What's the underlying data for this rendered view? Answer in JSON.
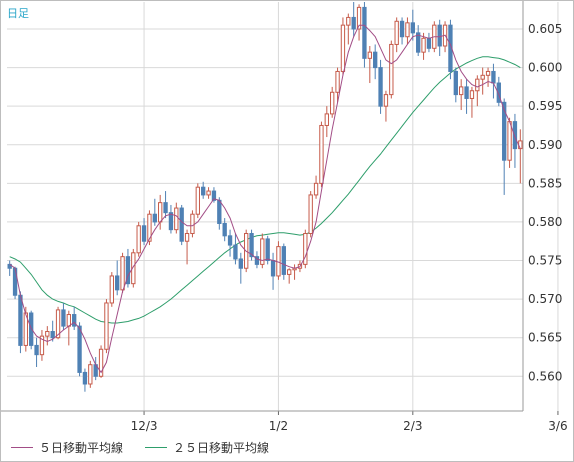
{
  "chart_data": {
    "type": "candlestick",
    "title": "日足",
    "y_ticks": [
      "0.605",
      "0.600",
      "0.595",
      "0.590",
      "0.585",
      "0.580",
      "0.575",
      "0.570",
      "0.565",
      "0.560"
    ],
    "ylim": [
      0.5555,
      0.6085
    ],
    "x_tick_labels": [
      "12/3",
      "1/2",
      "2/3",
      "3/6"
    ],
    "x_tick_index": [
      25,
      50,
      75,
      102
    ],
    "grid": true,
    "colors": {
      "up": "#c65b4a",
      "down": "#4f81b4",
      "ma5": "#a24d86",
      "ma25": "#2e9e6b",
      "grid": "#d9d9d9",
      "title": "#2aa6c9"
    },
    "candles": [
      [
        0.5745,
        0.575,
        0.573,
        0.574
      ],
      [
        0.574,
        0.5742,
        0.57,
        0.5705
      ],
      [
        0.5705,
        0.571,
        0.563,
        0.564
      ],
      [
        0.564,
        0.569,
        0.5632,
        0.5682
      ],
      [
        0.5682,
        0.5685,
        0.5635,
        0.564
      ],
      [
        0.564,
        0.565,
        0.5612,
        0.5628
      ],
      [
        0.5628,
        0.566,
        0.562,
        0.5652
      ],
      [
        0.5652,
        0.5665,
        0.564,
        0.5658
      ],
      [
        0.5658,
        0.5672,
        0.5645,
        0.565
      ],
      [
        0.565,
        0.569,
        0.5648,
        0.5686
      ],
      [
        0.5686,
        0.5695,
        0.566,
        0.5665
      ],
      [
        0.5665,
        0.5685,
        0.564,
        0.568
      ],
      [
        0.568,
        0.569,
        0.566,
        0.5665
      ],
      [
        0.5665,
        0.567,
        0.56,
        0.5605
      ],
      [
        0.5605,
        0.561,
        0.558,
        0.559
      ],
      [
        0.559,
        0.562,
        0.5585,
        0.5615
      ],
      [
        0.5615,
        0.5625,
        0.5595,
        0.56
      ],
      [
        0.56,
        0.564,
        0.5598,
        0.5635
      ],
      [
        0.5635,
        0.57,
        0.563,
        0.5695
      ],
      [
        0.5695,
        0.5735,
        0.569,
        0.573
      ],
      [
        0.573,
        0.575,
        0.5705,
        0.5712
      ],
      [
        0.5712,
        0.576,
        0.5708,
        0.5755
      ],
      [
        0.5755,
        0.5765,
        0.5715,
        0.572
      ],
      [
        0.572,
        0.5765,
        0.5715,
        0.576
      ],
      [
        0.576,
        0.58,
        0.5755,
        0.5795
      ],
      [
        0.5795,
        0.5805,
        0.577,
        0.5775
      ],
      [
        0.5775,
        0.5815,
        0.577,
        0.581
      ],
      [
        0.581,
        0.583,
        0.5795,
        0.58
      ],
      [
        0.58,
        0.5835,
        0.579,
        0.5825
      ],
      [
        0.5825,
        0.584,
        0.5805,
        0.5812
      ],
      [
        0.5812,
        0.5822,
        0.5785,
        0.579
      ],
      [
        0.579,
        0.5825,
        0.5785,
        0.5818
      ],
      [
        0.5818,
        0.5822,
        0.577,
        0.5775
      ],
      [
        0.5775,
        0.579,
        0.5745,
        0.5785
      ],
      [
        0.5785,
        0.5815,
        0.578,
        0.581
      ],
      [
        0.581,
        0.585,
        0.5805,
        0.5845
      ],
      [
        0.5845,
        0.5852,
        0.583,
        0.5835
      ],
      [
        0.5835,
        0.5845,
        0.583,
        0.584
      ],
      [
        0.584,
        0.5845,
        0.5825,
        0.5828
      ],
      [
        0.5828,
        0.5832,
        0.579,
        0.5798
      ],
      [
        0.5798,
        0.5805,
        0.5775,
        0.5782
      ],
      [
        0.5782,
        0.579,
        0.5755,
        0.577
      ],
      [
        0.577,
        0.5785,
        0.5745,
        0.5752
      ],
      [
        0.5752,
        0.576,
        0.572,
        0.574
      ],
      [
        0.574,
        0.579,
        0.5735,
        0.5785
      ],
      [
        0.5785,
        0.579,
        0.575,
        0.5755
      ],
      [
        0.5755,
        0.5762,
        0.574,
        0.5745
      ],
      [
        0.5745,
        0.5785,
        0.574,
        0.5778
      ],
      [
        0.5778,
        0.5782,
        0.5745,
        0.575
      ],
      [
        0.575,
        0.576,
        0.5712,
        0.573
      ],
      [
        0.573,
        0.5775,
        0.5725,
        0.5768
      ],
      [
        0.5768,
        0.5772,
        0.5725,
        0.5732
      ],
      [
        0.5732,
        0.574,
        0.572,
        0.5738
      ],
      [
        0.5738,
        0.5745,
        0.5725,
        0.574
      ],
      [
        0.574,
        0.575,
        0.5735,
        0.5745
      ],
      [
        0.5745,
        0.579,
        0.574,
        0.5785
      ],
      [
        0.5785,
        0.584,
        0.578,
        0.5835
      ],
      [
        0.5835,
        0.586,
        0.583,
        0.585
      ],
      [
        0.585,
        0.593,
        0.5845,
        0.5925
      ],
      [
        0.5925,
        0.595,
        0.591,
        0.594
      ],
      [
        0.594,
        0.5975,
        0.5935,
        0.5968
      ],
      [
        0.5968,
        0.6,
        0.5955,
        0.5995
      ],
      [
        0.5995,
        0.6065,
        0.599,
        0.6055
      ],
      [
        0.6055,
        0.607,
        0.603,
        0.6065
      ],
      [
        0.6065,
        0.6085,
        0.604,
        0.605
      ],
      [
        0.605,
        0.6082,
        0.6035,
        0.6078
      ],
      [
        0.6078,
        0.6085,
        0.6,
        0.6012
      ],
      [
        0.6012,
        0.6028,
        0.598,
        0.602
      ],
      [
        0.602,
        0.603,
        0.5985,
        0.6
      ],
      [
        0.6,
        0.601,
        0.594,
        0.595
      ],
      [
        0.595,
        0.597,
        0.593,
        0.5965
      ],
      [
        0.5965,
        0.6035,
        0.596,
        0.603
      ],
      [
        0.603,
        0.6065,
        0.602,
        0.606
      ],
      [
        0.606,
        0.6065,
        0.603,
        0.604
      ],
      [
        0.604,
        0.6065,
        0.603,
        0.6058
      ],
      [
        0.6058,
        0.6075,
        0.6035,
        0.6045
      ],
      [
        0.6045,
        0.6055,
        0.6015,
        0.602
      ],
      [
        0.602,
        0.6045,
        0.601,
        0.6038
      ],
      [
        0.6038,
        0.6045,
        0.602,
        0.6025
      ],
      [
        0.6025,
        0.606,
        0.602,
        0.6055
      ],
      [
        0.6055,
        0.6062,
        0.6015,
        0.6028
      ],
      [
        0.6028,
        0.606,
        0.602,
        0.6055
      ],
      [
        0.6055,
        0.6062,
        0.5985,
        0.5995
      ],
      [
        0.5995,
        0.6,
        0.5955,
        0.5965
      ],
      [
        0.5965,
        0.5985,
        0.5945,
        0.5975
      ],
      [
        0.5975,
        0.5985,
        0.594,
        0.596
      ],
      [
        0.596,
        0.5975,
        0.5935,
        0.597
      ],
      [
        0.597,
        0.599,
        0.595,
        0.5985
      ],
      [
        0.5985,
        0.6,
        0.5965,
        0.599
      ],
      [
        0.599,
        0.6,
        0.5975,
        0.5995
      ],
      [
        0.5995,
        0.6005,
        0.596,
        0.598
      ],
      [
        0.598,
        0.5988,
        0.595,
        0.5955
      ],
      [
        0.5955,
        0.596,
        0.5835,
        0.588
      ],
      [
        0.588,
        0.5935,
        0.587,
        0.593
      ],
      [
        0.593,
        0.594,
        0.587,
        0.5895
      ],
      [
        0.5895,
        0.592,
        0.585,
        0.5905
      ]
    ],
    "ma5": [
      0.5745,
      0.574,
      0.5705,
      0.568,
      0.5662,
      0.5652,
      0.5648,
      0.5645,
      0.5648,
      0.5654,
      0.566,
      0.5665,
      0.567,
      0.5662,
      0.5648,
      0.563,
      0.5615,
      0.5605,
      0.5618,
      0.565,
      0.568,
      0.571,
      0.573,
      0.5742,
      0.5752,
      0.5765,
      0.5778,
      0.579,
      0.58,
      0.5808,
      0.581,
      0.5808,
      0.58,
      0.5795,
      0.5795,
      0.58,
      0.581,
      0.582,
      0.583,
      0.5828,
      0.5818,
      0.5805,
      0.5785,
      0.577,
      0.5762,
      0.5758,
      0.5752,
      0.575,
      0.5752,
      0.575,
      0.5748,
      0.5745,
      0.5742,
      0.574,
      0.5742,
      0.5755,
      0.5775,
      0.58,
      0.584,
      0.588,
      0.592,
      0.5955,
      0.599,
      0.602,
      0.604,
      0.6055,
      0.6055,
      0.6048,
      0.604,
      0.6025,
      0.601,
      0.6005,
      0.601,
      0.602,
      0.603,
      0.604,
      0.6042,
      0.604,
      0.6038,
      0.604,
      0.604,
      0.6042,
      0.603,
      0.601,
      0.5995,
      0.5985,
      0.5978,
      0.5975,
      0.5978,
      0.5982,
      0.598,
      0.5965,
      0.5945,
      0.593,
      0.591,
      0.5895
    ],
    "ma25": [
      0.5755,
      0.5752,
      0.5748,
      0.574,
      0.5732,
      0.5722,
      0.5712,
      0.5705,
      0.57,
      0.5697,
      0.5695,
      0.5692,
      0.569,
      0.5686,
      0.5682,
      0.5678,
      0.5674,
      0.5671,
      0.567,
      0.5669,
      0.5669,
      0.567,
      0.5671,
      0.5673,
      0.5675,
      0.5678,
      0.5682,
      0.5686,
      0.569,
      0.5695,
      0.57,
      0.5706,
      0.5712,
      0.5718,
      0.5724,
      0.573,
      0.5736,
      0.5742,
      0.5748,
      0.5754,
      0.576,
      0.5765,
      0.577,
      0.5774,
      0.5777,
      0.578,
      0.5782,
      0.5783,
      0.5784,
      0.5785,
      0.5786,
      0.5786,
      0.5785,
      0.5784,
      0.5783,
      0.5784,
      0.5787,
      0.5792,
      0.5798,
      0.5805,
      0.5812,
      0.582,
      0.5828,
      0.5836,
      0.5845,
      0.5854,
      0.5863,
      0.5872,
      0.588,
      0.5888,
      0.5897,
      0.5906,
      0.5915,
      0.5924,
      0.5933,
      0.5942,
      0.595,
      0.5958,
      0.5966,
      0.5974,
      0.5981,
      0.5987,
      0.5993,
      0.5998,
      0.6002,
      0.6006,
      0.6009,
      0.6012,
      0.6014,
      0.6014,
      0.6013,
      0.6012,
      0.601,
      0.6007,
      0.6004,
      0.6
    ],
    "series": [
      {
        "name": "５日移動平均線",
        "color": "#a24d86"
      },
      {
        "name": "２５日移動平均線",
        "color": "#2e9e6b"
      }
    ]
  }
}
